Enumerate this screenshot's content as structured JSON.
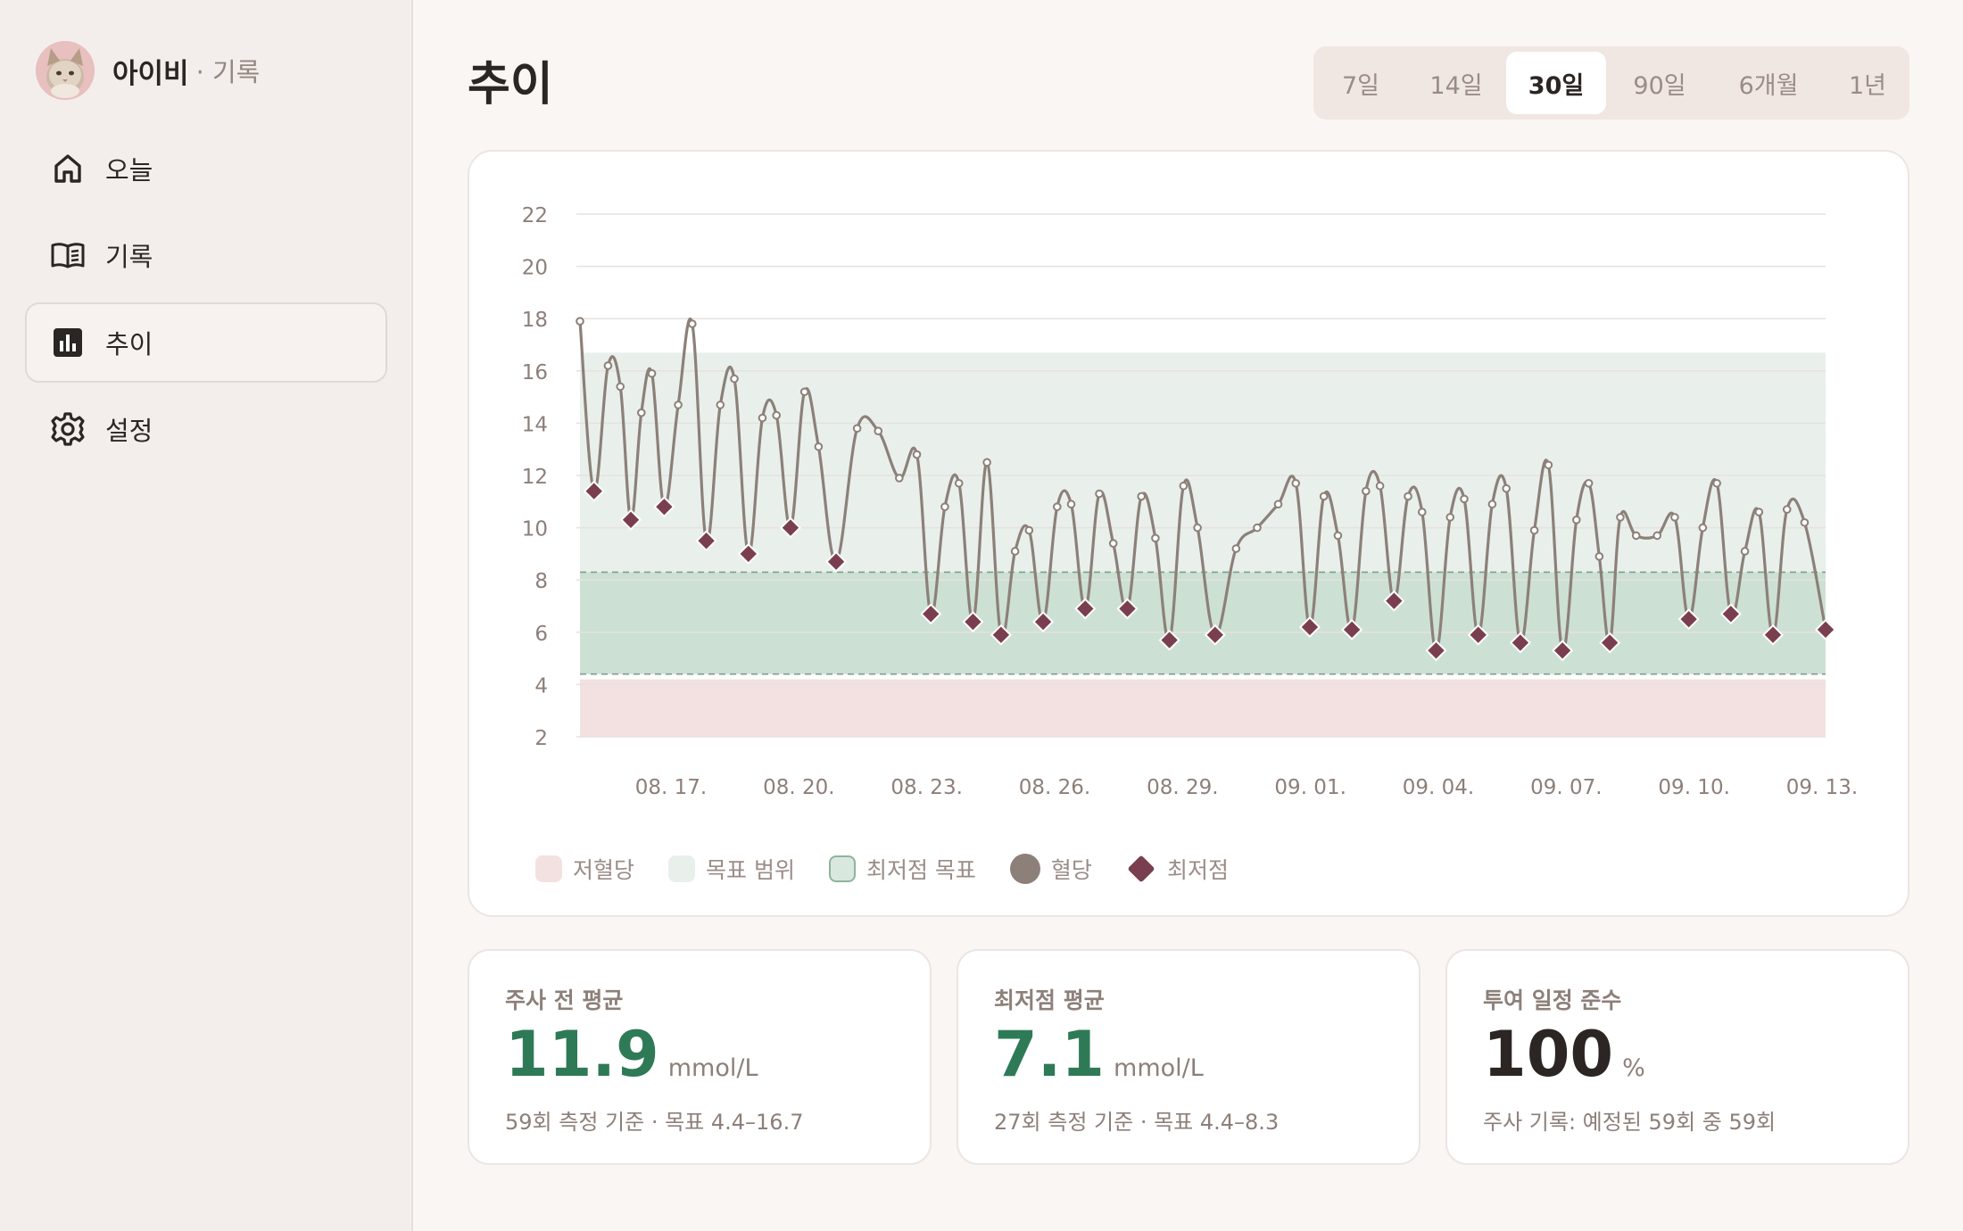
{
  "app": {
    "pet_name": "아이비",
    "section_suffix": "· 기록"
  },
  "sidebar": {
    "items": [
      {
        "label": "오늘",
        "icon": "home-icon",
        "active": false
      },
      {
        "label": "기록",
        "icon": "book-icon",
        "active": false
      },
      {
        "label": "추이",
        "icon": "bar-chart-icon",
        "active": true
      },
      {
        "label": "설정",
        "icon": "gear-icon",
        "active": false
      }
    ]
  },
  "page": {
    "title": "추이"
  },
  "range": {
    "options": [
      "7일",
      "14일",
      "30일",
      "90일",
      "6개월",
      "1년"
    ],
    "selected": "30일"
  },
  "chart_data": {
    "type": "line",
    "ylim": [
      2,
      22
    ],
    "yticks": [
      22,
      20,
      18,
      16,
      14,
      12,
      10,
      8,
      6,
      4,
      2
    ],
    "xlim": [
      "08. 15.",
      "09. 13."
    ],
    "xtick_labels": [
      "08. 17.",
      "08. 20.",
      "08. 23.",
      "08. 26.",
      "08. 29.",
      "09. 01.",
      "09. 04.",
      "09. 07.",
      "09. 10.",
      "09. 13."
    ],
    "grid": true,
    "bands": {
      "hypoglycemia": [
        2,
        4.2
      ],
      "target_range": [
        4.4,
        16.7
      ],
      "nadir_target": [
        4.4,
        8.3
      ]
    },
    "colors": {
      "hypoglycemia": "#f3e1e1",
      "target_range": "#e9f0ec",
      "nadir_target": "#cde0d4",
      "glucose_line": "#8c8079",
      "nadir_marker": "#7a3f4f"
    },
    "legend": [
      "저혈당",
      "목표 범위",
      "최저점 목표",
      "혈당",
      "최저점"
    ],
    "legend_position": "bottom-left",
    "series": [
      {
        "name": "혈당",
        "points": [
          [
            "08. 15.",
            17.9
          ],
          [
            "08. 15.",
            11.4
          ],
          [
            "08. 15.",
            16.2
          ],
          [
            "08. 16.",
            15.4
          ],
          [
            "08. 16.",
            10.3
          ],
          [
            "08. 16.",
            14.4
          ],
          [
            "08. 16.",
            15.9
          ],
          [
            "08. 17.",
            10.8
          ],
          [
            "08. 17.",
            14.7
          ],
          [
            "08. 17.",
            17.8
          ],
          [
            "08. 18.",
            9.5
          ],
          [
            "08. 18.",
            14.7
          ],
          [
            "08. 18.",
            15.7
          ],
          [
            "08. 19.",
            9.0
          ],
          [
            "08. 19.",
            14.2
          ],
          [
            "08. 19.",
            14.3
          ],
          [
            "08. 20.",
            10.0
          ],
          [
            "08. 20.",
            15.2
          ],
          [
            "08. 20.",
            13.1
          ],
          [
            "08. 21.",
            8.7
          ],
          [
            "08. 21.",
            13.8
          ],
          [
            "08. 22.",
            13.7
          ],
          [
            "08. 22.",
            11.9
          ],
          [
            "08. 23.",
            12.8
          ],
          [
            "08. 23.",
            6.7
          ],
          [
            "08. 23.",
            10.8
          ],
          [
            "08. 24.",
            11.7
          ],
          [
            "08. 24.",
            6.4
          ],
          [
            "08. 24.",
            12.5
          ],
          [
            "08. 25.",
            5.9
          ],
          [
            "08. 25.",
            9.1
          ],
          [
            "08. 25.",
            9.9
          ],
          [
            "08. 26.",
            6.4
          ],
          [
            "08. 26.",
            10.8
          ],
          [
            "08. 26.",
            10.9
          ],
          [
            "08. 27.",
            6.9
          ],
          [
            "08. 27.",
            11.3
          ],
          [
            "08. 27.",
            9.4
          ],
          [
            "08. 28.",
            6.9
          ],
          [
            "08. 28.",
            11.2
          ],
          [
            "08. 28.",
            9.6
          ],
          [
            "08. 29.",
            5.7
          ],
          [
            "08. 29.",
            11.6
          ],
          [
            "08. 29.",
            10.0
          ],
          [
            "08. 30.",
            5.9
          ],
          [
            "08. 30.",
            9.2
          ],
          [
            "08. 31.",
            10.0
          ],
          [
            "08. 31.",
            10.9
          ],
          [
            "09. 01.",
            11.7
          ],
          [
            "09. 01.",
            6.2
          ],
          [
            "09. 01.",
            11.2
          ],
          [
            "09. 02.",
            9.7
          ],
          [
            "09. 02.",
            6.1
          ],
          [
            "09. 02.",
            11.4
          ],
          [
            "09. 03.",
            11.6
          ],
          [
            "09. 03.",
            7.2
          ],
          [
            "09. 03.",
            11.2
          ],
          [
            "09. 04.",
            10.6
          ],
          [
            "09. 04.",
            5.3
          ],
          [
            "09. 04.",
            10.4
          ],
          [
            "09. 05.",
            11.1
          ],
          [
            "09. 05.",
            5.9
          ],
          [
            "09. 05.",
            10.9
          ],
          [
            "09. 06.",
            11.5
          ],
          [
            "09. 06.",
            5.6
          ],
          [
            "09. 06.",
            9.9
          ],
          [
            "09. 07.",
            12.4
          ],
          [
            "09. 07.",
            5.3
          ],
          [
            "09. 07.",
            10.3
          ],
          [
            "09. 08.",
            11.7
          ],
          [
            "09. 08.",
            8.9
          ],
          [
            "09. 08.",
            5.6
          ],
          [
            "09. 08.",
            10.4
          ],
          [
            "09. 09.",
            9.7
          ],
          [
            "09. 09.",
            9.7
          ],
          [
            "09. 10.",
            10.4
          ],
          [
            "09. 10.",
            6.5
          ],
          [
            "09. 10.",
            10.0
          ],
          [
            "09. 11.",
            11.7
          ],
          [
            "09. 11.",
            6.7
          ],
          [
            "09. 11.",
            9.1
          ],
          [
            "09. 12.",
            10.6
          ],
          [
            "09. 12.",
            5.9
          ],
          [
            "09. 12.",
            10.7
          ],
          [
            "09. 13.",
            10.2
          ],
          [
            "09. 13.",
            6.1
          ]
        ]
      },
      {
        "name": "최저점",
        "points": [
          [
            "08. 15.",
            11.4
          ],
          [
            "08. 16.",
            10.3
          ],
          [
            "08. 17.",
            10.8
          ],
          [
            "08. 18.",
            9.5
          ],
          [
            "08. 19.",
            9.0
          ],
          [
            "08. 20.",
            10.0
          ],
          [
            "08. 21.",
            8.7
          ],
          [
            "08. 23.",
            6.7
          ],
          [
            "08. 24.",
            6.4
          ],
          [
            "08. 25.",
            5.9
          ],
          [
            "08. 26.",
            6.4
          ],
          [
            "08. 27.",
            6.9
          ],
          [
            "08. 28.",
            6.9
          ],
          [
            "08. 29.",
            5.7
          ],
          [
            "08. 30.",
            5.9
          ],
          [
            "09. 01.",
            6.2
          ],
          [
            "09. 02.",
            6.1
          ],
          [
            "09. 03.",
            7.2
          ],
          [
            "09. 04.",
            5.3
          ],
          [
            "09. 05.",
            5.9
          ],
          [
            "09. 06.",
            5.6
          ],
          [
            "09. 07.",
            5.3
          ],
          [
            "09. 08.",
            5.6
          ],
          [
            "09. 10.",
            6.5
          ],
          [
            "09. 11.",
            6.7
          ],
          [
            "09. 12.",
            5.9
          ],
          [
            "09. 13.",
            6.1
          ]
        ]
      }
    ]
  },
  "stats": [
    {
      "title": "주사 전 평균",
      "value": "11.9",
      "unit": "mmol/L",
      "sub": "59회 측정 기준 · 목표 4.4–16.7",
      "color": "#2e7a57"
    },
    {
      "title": "최저점 평균",
      "value": "7.1",
      "unit": "mmol/L",
      "sub": "27회 측정 기준 · 목표 4.4–8.3",
      "color": "#2e7a57"
    },
    {
      "title": "투여 일정 준수",
      "value": "100",
      "unit": "%",
      "sub": "주사 기록: 예정된 59회 중 59회",
      "color": "#2b2523"
    }
  ]
}
